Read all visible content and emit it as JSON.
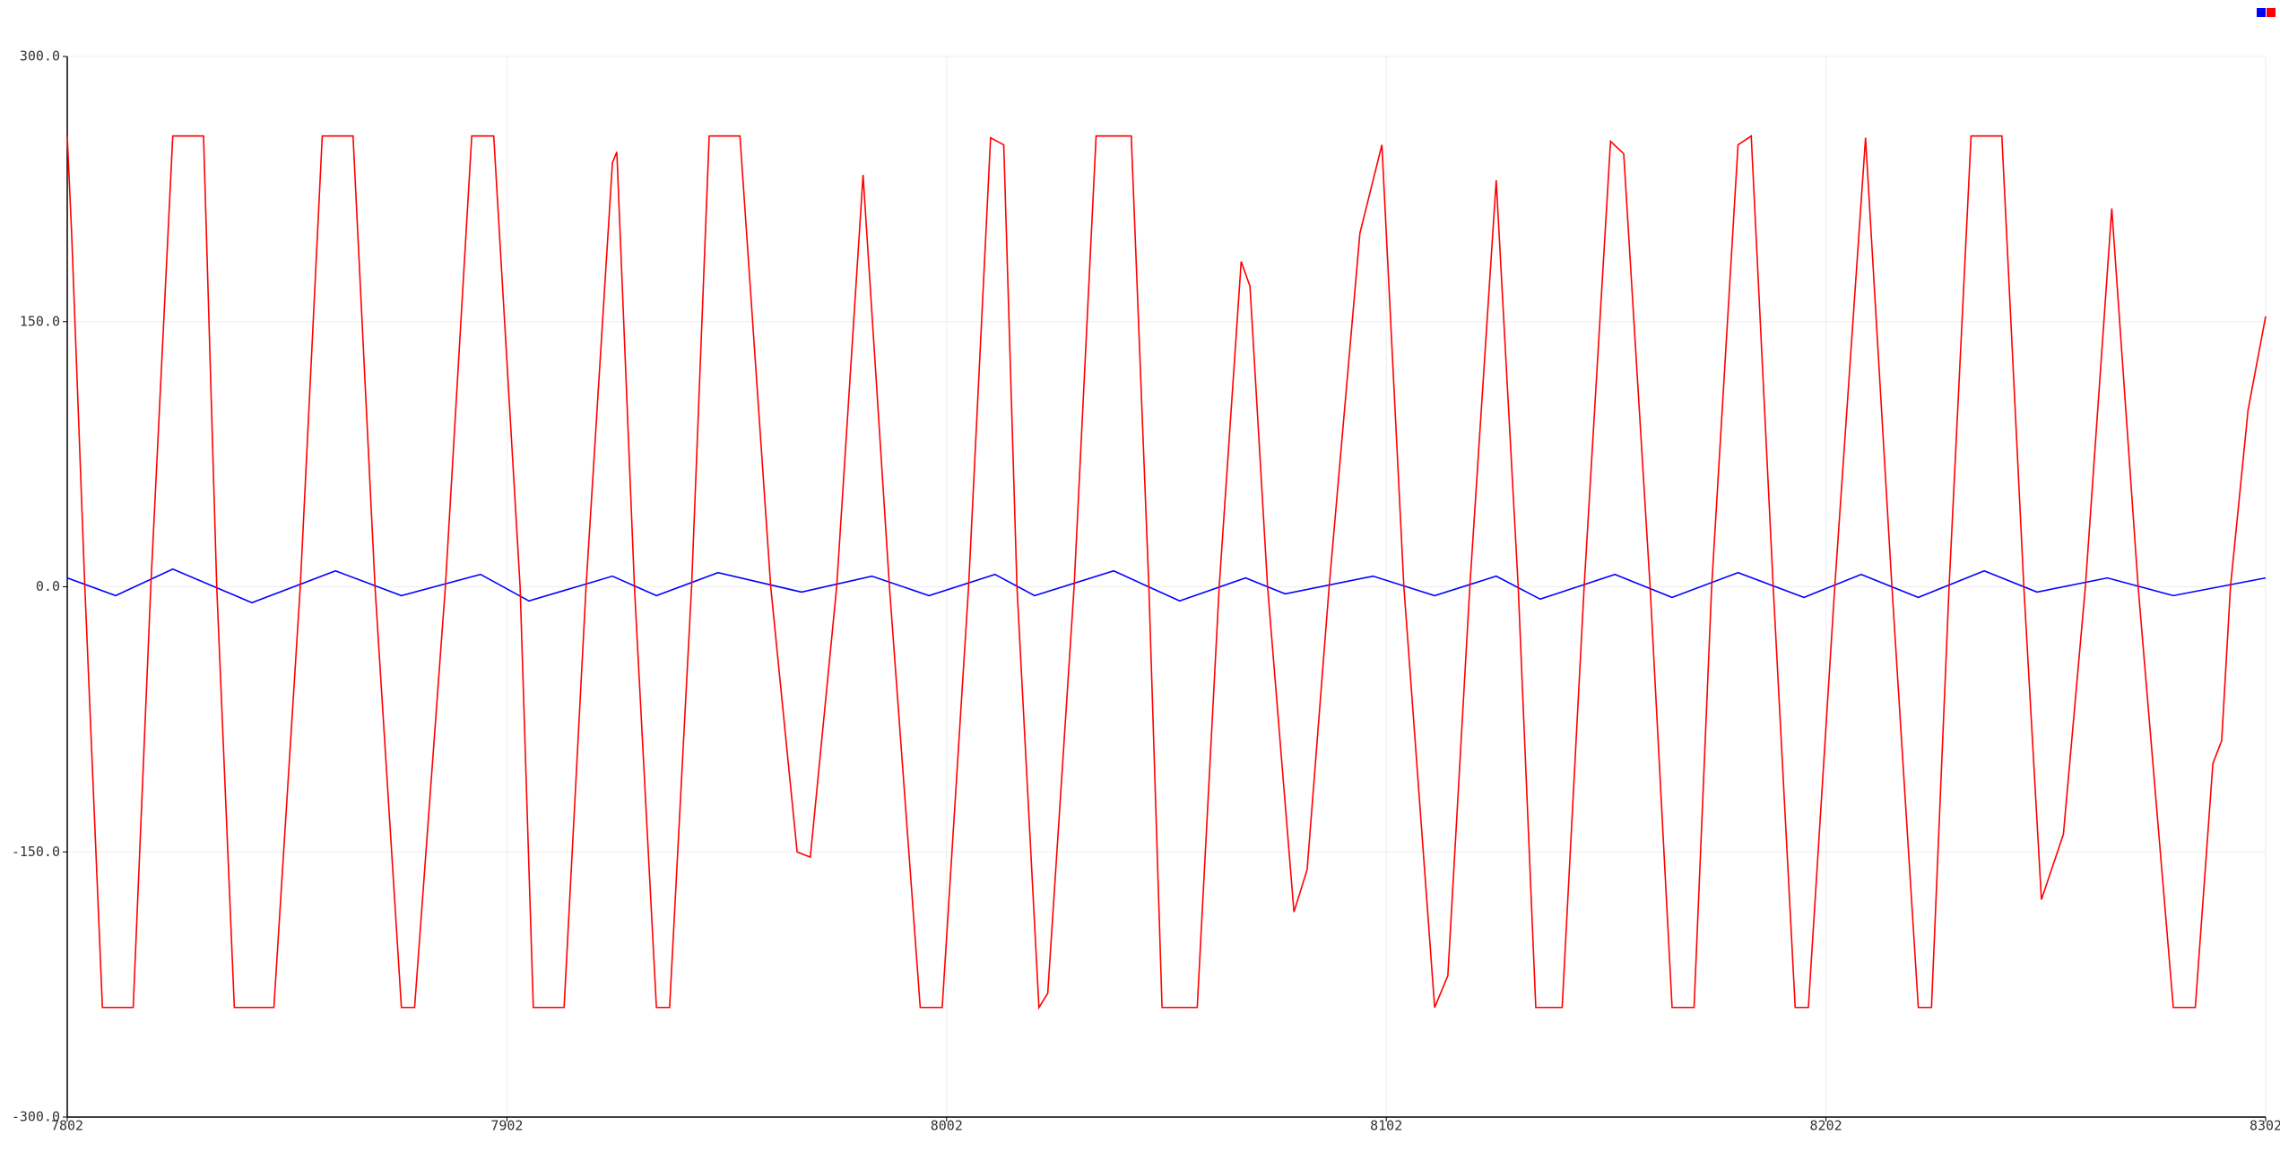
{
  "chart_data": {
    "type": "line",
    "xlim": [
      7802,
      8302
    ],
    "xticks": [
      7802,
      7902,
      8002,
      8102,
      8202,
      8302
    ],
    "ylim": [
      -300,
      300
    ],
    "yticks": [
      {
        "value": -300,
        "label": "-300.0"
      },
      {
        "value": -150,
        "label": "-150.0"
      },
      {
        "value": 0,
        "label": "0.0"
      },
      {
        "value": 150,
        "label": "150.0"
      },
      {
        "value": 300,
        "label": "300.0"
      }
    ],
    "grid": true,
    "legend": "top-right",
    "series": [
      {
        "color": "#0000ff",
        "x": [
          7802,
          7813,
          7826,
          7844,
          7863,
          7878,
          7896,
          7907,
          7926,
          7936,
          7950,
          7969,
          7985,
          7998,
          8013,
          8022,
          8040,
          8055,
          8070,
          8079,
          8099,
          8113,
          8127,
          8137,
          8154,
          8167,
          8182,
          8197,
          8210,
          8223,
          8238,
          8250,
          8266,
          8281,
          8302
        ],
        "values": [
          5,
          -5,
          10,
          -9,
          9,
          -5,
          7,
          -8,
          6,
          -5,
          8,
          -3,
          6,
          -5,
          7,
          -5,
          9,
          -8,
          5,
          -4,
          6,
          -5,
          6,
          -7,
          7,
          -6,
          8,
          -6,
          7,
          -6,
          9,
          -3,
          5,
          -5,
          5
        ]
      },
      {
        "color": "#ff0000",
        "x": [
          7802,
          7803,
          7806,
          7810,
          7817,
          7821,
          7826,
          7833,
          7836,
          7840,
          7849,
          7855,
          7860,
          7867,
          7872,
          7878,
          7881,
          7888,
          7894,
          7899,
          7905,
          7908,
          7915,
          7920,
          7926,
          7927,
          7931,
          7936,
          7939,
          7944,
          7948,
          7955,
          7962,
          7968,
          7971,
          7977,
          7983,
          7989,
          7996,
          8001,
          8007,
          8012,
          8015,
          8018,
          8023,
          8025,
          8031,
          8036,
          8044,
          8048,
          8051,
          8059,
          8064,
          8069,
          8071,
          8075,
          8081,
          8084,
          8089,
          8096,
          8101,
          8106,
          8113,
          8116,
          8121,
          8127,
          8132,
          8136,
          8142,
          8147,
          8153,
          8156,
          8162,
          8167,
          8172,
          8176,
          8182,
          8185,
          8190,
          8195,
          8198,
          8204,
          8211,
          8217,
          8223,
          8226,
          8230,
          8235,
          8242,
          8247,
          8251,
          8256,
          8261,
          8267,
          8273,
          8281,
          8286,
          8290,
          8292,
          8294,
          8298,
          8302
        ],
        "values": [
          255,
          200,
          0,
          -238,
          -238,
          0,
          255,
          255,
          0,
          -238,
          -238,
          0,
          255,
          255,
          0,
          -238,
          -238,
          0,
          255,
          255,
          0,
          -238,
          -238,
          0,
          240,
          246,
          0,
          -238,
          -238,
          0,
          255,
          255,
          0,
          -150,
          -153,
          0,
          233,
          0,
          -238,
          -238,
          0,
          254,
          250,
          0,
          -238,
          -230,
          0,
          255,
          255,
          0,
          -238,
          -238,
          0,
          184,
          170,
          0,
          -184,
          -160,
          0,
          200,
          250,
          0,
          -238,
          -220,
          0,
          230,
          0,
          -238,
          -238,
          0,
          252,
          245,
          0,
          -238,
          -238,
          0,
          250,
          255,
          0,
          -238,
          -238,
          0,
          254,
          0,
          -238,
          -238,
          0,
          255,
          255,
          0,
          -177,
          -140,
          0,
          214,
          0,
          -238,
          -238,
          -100,
          -87,
          0,
          100,
          153
        ]
      }
    ]
  }
}
